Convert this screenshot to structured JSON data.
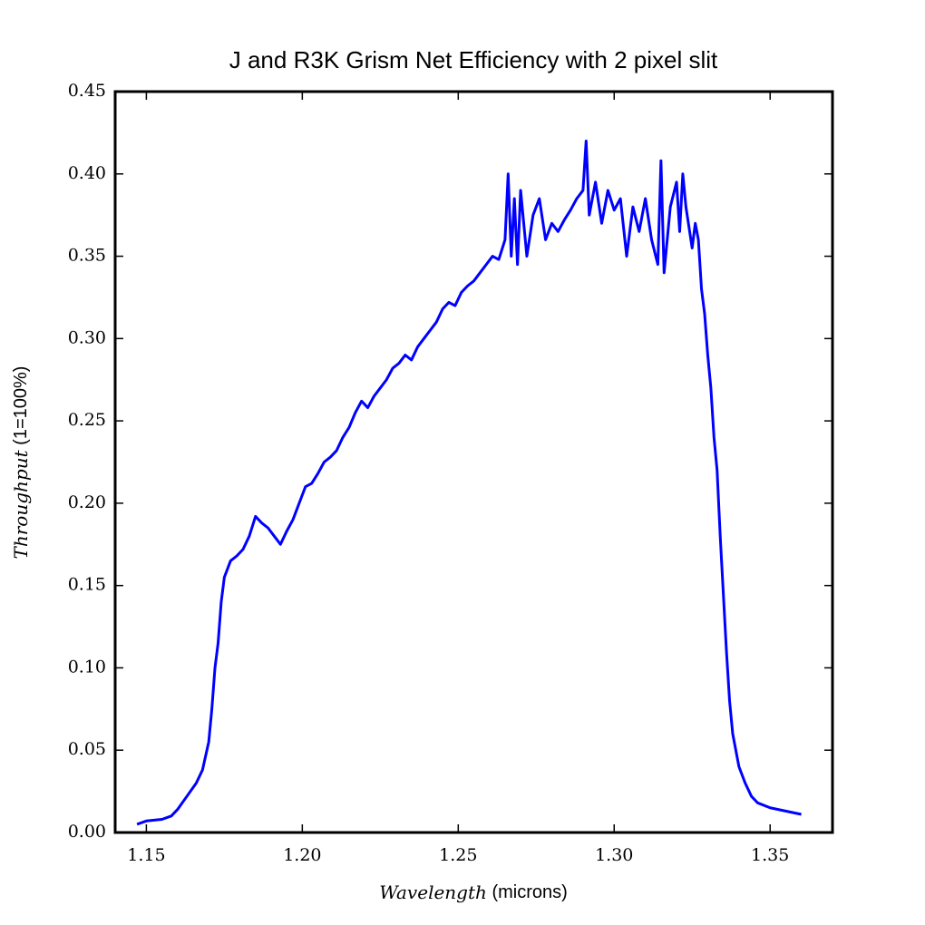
{
  "chart_data": {
    "type": "line",
    "title": "J and R3K Grism Net Efficiency with 2 pixel slit",
    "xlabel": {
      "variable": "Wavelength",
      "unit": "(microns)"
    },
    "ylabel": {
      "variable": "Throughput",
      "unit": "(1=100%)"
    },
    "xlim": [
      1.14,
      1.37
    ],
    "ylim": [
      0,
      0.45
    ],
    "xticks": [
      {
        "value": 1.15,
        "label": "1.15"
      },
      {
        "value": 1.2,
        "label": "1.20"
      },
      {
        "value": 1.25,
        "label": "1.25"
      },
      {
        "value": 1.3,
        "label": "1.30"
      },
      {
        "value": 1.35,
        "label": "1.35"
      }
    ],
    "yticks": [
      {
        "value": 0,
        "label": "0.00"
      },
      {
        "value": 0.05,
        "label": "0.05"
      },
      {
        "value": 0.1,
        "label": "0.10"
      },
      {
        "value": 0.15,
        "label": "0.15"
      },
      {
        "value": 0.2,
        "label": "0.20"
      },
      {
        "value": 0.25,
        "label": "0.25"
      },
      {
        "value": 0.3,
        "label": "0.30"
      },
      {
        "value": 0.35,
        "label": "0.35"
      },
      {
        "value": 0.4,
        "label": "0.40"
      },
      {
        "value": 0.45,
        "label": "0.45"
      }
    ],
    "grid": false,
    "series": [
      {
        "color": "#0000ff",
        "x": [
          1.147,
          1.15,
          1.155,
          1.158,
          1.16,
          1.163,
          1.166,
          1.168,
          1.17,
          1.171,
          1.172,
          1.173,
          1.174,
          1.175,
          1.177,
          1.179,
          1.181,
          1.183,
          1.185,
          1.187,
          1.189,
          1.191,
          1.193,
          1.195,
          1.197,
          1.199,
          1.201,
          1.203,
          1.205,
          1.207,
          1.209,
          1.211,
          1.213,
          1.215,
          1.217,
          1.219,
          1.221,
          1.223,
          1.225,
          1.227,
          1.229,
          1.231,
          1.233,
          1.235,
          1.237,
          1.239,
          1.241,
          1.243,
          1.245,
          1.247,
          1.249,
          1.251,
          1.253,
          1.255,
          1.257,
          1.259,
          1.261,
          1.263,
          1.265,
          1.266,
          1.267,
          1.268,
          1.269,
          1.27,
          1.272,
          1.274,
          1.276,
          1.278,
          1.28,
          1.282,
          1.284,
          1.286,
          1.288,
          1.29,
          1.291,
          1.292,
          1.294,
          1.296,
          1.298,
          1.3,
          1.302,
          1.304,
          1.306,
          1.308,
          1.31,
          1.312,
          1.314,
          1.315,
          1.316,
          1.318,
          1.32,
          1.321,
          1.322,
          1.323,
          1.325,
          1.326,
          1.327,
          1.328,
          1.329,
          1.33,
          1.331,
          1.332,
          1.333,
          1.334,
          1.335,
          1.336,
          1.337,
          1.338,
          1.34,
          1.342,
          1.344,
          1.346,
          1.35,
          1.355,
          1.36
        ],
        "values": [
          0.005,
          0.007,
          0.008,
          0.01,
          0.014,
          0.022,
          0.03,
          0.038,
          0.055,
          0.075,
          0.1,
          0.115,
          0.14,
          0.155,
          0.165,
          0.168,
          0.172,
          0.18,
          0.192,
          0.188,
          0.185,
          0.18,
          0.175,
          0.183,
          0.19,
          0.2,
          0.21,
          0.212,
          0.218,
          0.225,
          0.228,
          0.232,
          0.24,
          0.246,
          0.255,
          0.262,
          0.258,
          0.265,
          0.27,
          0.275,
          0.282,
          0.285,
          0.29,
          0.287,
          0.295,
          0.3,
          0.305,
          0.31,
          0.318,
          0.322,
          0.32,
          0.328,
          0.332,
          0.335,
          0.34,
          0.345,
          0.35,
          0.348,
          0.36,
          0.4,
          0.35,
          0.385,
          0.345,
          0.39,
          0.35,
          0.375,
          0.385,
          0.36,
          0.37,
          0.365,
          0.372,
          0.378,
          0.385,
          0.39,
          0.42,
          0.375,
          0.395,
          0.37,
          0.39,
          0.378,
          0.385,
          0.35,
          0.38,
          0.365,
          0.385,
          0.36,
          0.345,
          0.408,
          0.34,
          0.38,
          0.395,
          0.365,
          0.4,
          0.38,
          0.355,
          0.37,
          0.36,
          0.33,
          0.315,
          0.29,
          0.27,
          0.24,
          0.22,
          0.18,
          0.145,
          0.11,
          0.08,
          0.06,
          0.04,
          0.03,
          0.022,
          0.018,
          0.015,
          0.013,
          0.011
        ]
      }
    ]
  }
}
